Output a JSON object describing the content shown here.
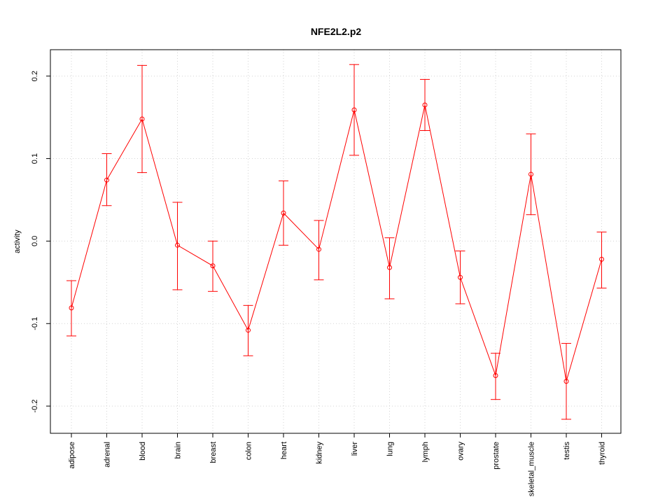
{
  "chart_data": {
    "type": "line",
    "title": "NFE2L2.p2",
    "xlabel": "",
    "ylabel": "activity",
    "categories": [
      "adipose",
      "adrenal",
      "blood",
      "brain",
      "breast",
      "colon",
      "heart",
      "kidney",
      "liver",
      "lung",
      "lymph",
      "ovary",
      "prostate",
      "skeletal_muscle",
      "testis",
      "thyroid"
    ],
    "series": [
      {
        "values": [
          -0.081,
          0.074,
          0.148,
          -0.005,
          -0.03,
          -0.108,
          0.034,
          -0.01,
          0.159,
          -0.032,
          0.165,
          -0.044,
          -0.163,
          0.081,
          -0.17,
          -0.022
        ],
        "lower": [
          -0.115,
          0.043,
          0.083,
          -0.059,
          -0.061,
          -0.139,
          -0.005,
          -0.047,
          0.104,
          -0.07,
          0.134,
          -0.076,
          -0.192,
          0.032,
          -0.216,
          -0.057
        ],
        "upper": [
          -0.048,
          0.106,
          0.213,
          0.047,
          0.0,
          -0.078,
          0.073,
          0.025,
          0.214,
          0.004,
          0.196,
          -0.012,
          -0.136,
          0.13,
          -0.124,
          0.011
        ]
      }
    ],
    "yticks": [
      "-0.2",
      "-0.1",
      "0.0",
      "0.1",
      "0.2"
    ],
    "ylim": [
      -0.233,
      0.232
    ],
    "grid": true,
    "colors": {
      "series": "#ff0000",
      "grid": "#d3d3d3",
      "axis": "#000000"
    }
  }
}
